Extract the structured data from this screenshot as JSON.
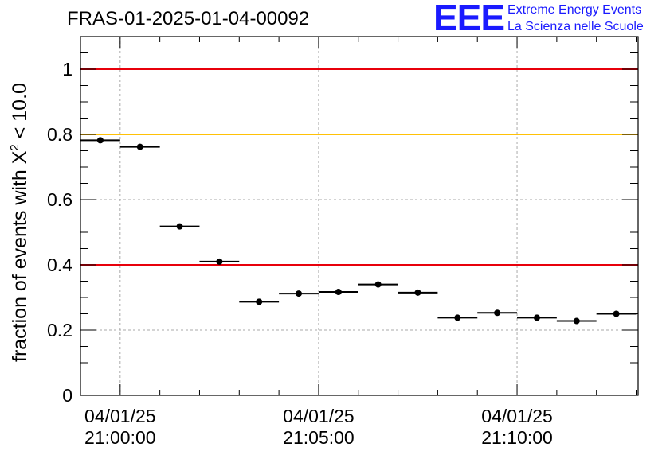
{
  "title": "FRAS-01-2025-01-04-00092",
  "logo": {
    "mark": "EEE",
    "line1": "Extreme Energy Events",
    "line2": "La Scienza nelle Scuole",
    "color": "#1a1aff"
  },
  "chart_data": {
    "type": "scatter",
    "title": "FRAS-01-2025-01-04-00092",
    "ylabel_prefix": "fraction of events with ",
    "ylabel_chi": "X",
    "ylabel_sup": "2",
    "ylabel_suffix": " < 10.0",
    "xlabel": "",
    "xlim_minutes": [
      -1.0,
      13.05
    ],
    "ylim": [
      0,
      1.1
    ],
    "y_ticks": [
      0,
      0.2,
      0.4,
      0.6,
      0.8,
      1
    ],
    "y_tick_labels": [
      "0",
      "0.2",
      "0.4",
      "0.6",
      "0.8",
      "1"
    ],
    "x_ticks_minutes": [
      0,
      5,
      10
    ],
    "x_tick_labels": [
      {
        "date": "04/01/25",
        "time": "21:00:00"
      },
      {
        "date": "04/01/25",
        "time": "21:05:00"
      },
      {
        "date": "04/01/25",
        "time": "21:10:00"
      }
    ],
    "grid": true,
    "bin_width_minutes": 1.0,
    "x_minutes": [
      -0.5,
      0.5,
      1.5,
      2.5,
      3.5,
      4.5,
      5.5,
      6.5,
      7.5,
      8.5,
      9.5,
      10.5,
      11.5,
      12.5
    ],
    "values": [
      0.782,
      0.762,
      0.518,
      0.41,
      0.287,
      0.312,
      0.317,
      0.34,
      0.315,
      0.238,
      0.253,
      0.238,
      0.228,
      0.25
    ],
    "reference_lines": [
      {
        "y": 1.0,
        "color": "#e8000b"
      },
      {
        "y": 0.8,
        "color": "#ffc107"
      },
      {
        "y": 0.4,
        "color": "#e8000b"
      }
    ]
  }
}
